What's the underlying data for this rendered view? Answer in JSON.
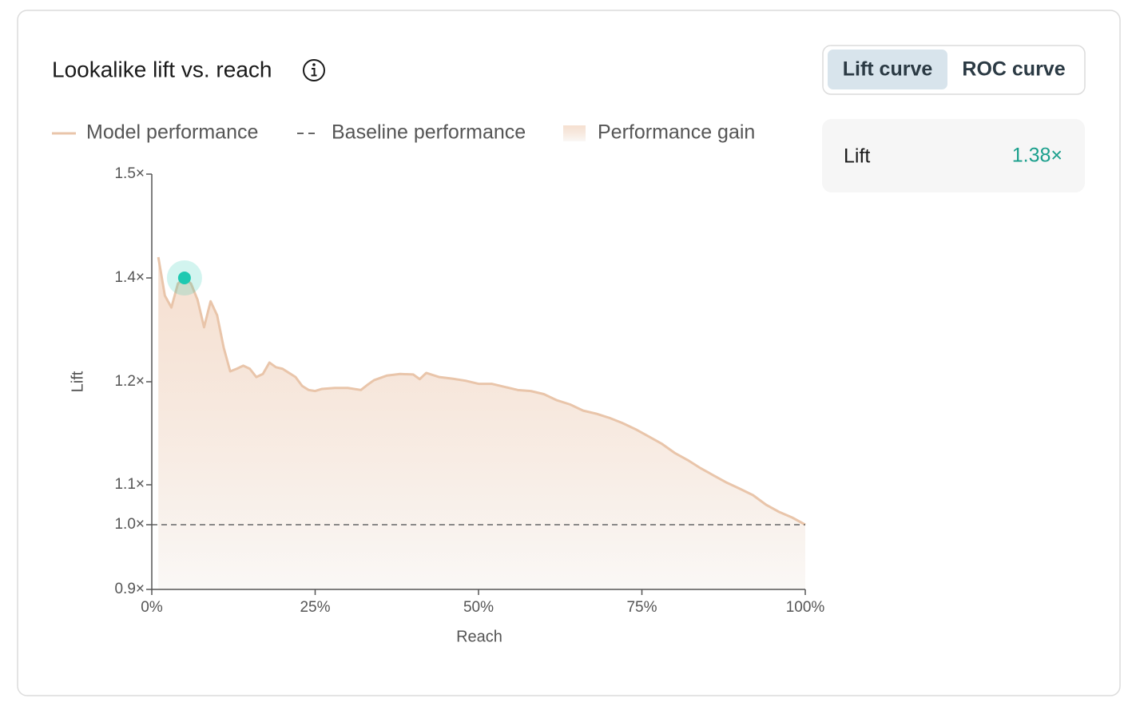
{
  "card": {
    "title": "Lookalike lift vs. reach",
    "tabs": [
      "Lift curve",
      "ROC curve"
    ],
    "stat": {
      "label": "Lift",
      "value": "1.38×"
    }
  },
  "chart_data": {
    "type": "area",
    "xlabel": "Reach",
    "ylabel": "Lift",
    "x": [
      1,
      2,
      3,
      4,
      5,
      6,
      7,
      8,
      9,
      10,
      11,
      12,
      13,
      14,
      15,
      16,
      17,
      18,
      19,
      20,
      21,
      22,
      23,
      24,
      25,
      26,
      28,
      30,
      32,
      33,
      34,
      36,
      38,
      40,
      41,
      42,
      44,
      46,
      48,
      50,
      52,
      54,
      56,
      58,
      60,
      62,
      64,
      66,
      68,
      70,
      72,
      74,
      76,
      78,
      80,
      82,
      84,
      86,
      88,
      90,
      92,
      94,
      96,
      98,
      100
    ],
    "series": [
      {
        "name": "Model performance",
        "color": "#e9c5aa",
        "values": [
          1.42,
          1.366,
          1.343,
          1.389,
          1.4,
          1.389,
          1.358,
          1.305,
          1.355,
          1.328,
          1.266,
          1.22,
          1.225,
          1.231,
          1.225,
          1.209,
          1.215,
          1.237,
          1.228,
          1.225,
          1.217,
          1.209,
          1.196,
          1.192,
          1.191,
          1.193,
          1.194,
          1.194,
          1.192,
          1.197,
          1.203,
          1.212,
          1.215,
          1.214,
          1.205,
          1.217,
          1.209,
          1.206,
          1.202,
          1.198,
          1.198,
          1.195,
          1.192,
          1.191,
          1.188,
          1.182,
          1.178,
          1.172,
          1.169,
          1.165,
          1.16,
          1.154,
          1.147,
          1.14,
          1.131,
          1.124,
          1.116,
          1.109,
          1.102,
          1.09,
          1.074,
          1.05,
          1.032,
          1.018,
          1.0
        ]
      }
    ],
    "baseline": {
      "name": "Baseline performance",
      "value": 1.0,
      "color": "#666666"
    },
    "fill": {
      "name": "Performance gain",
      "color": "#f2d5c1"
    },
    "highlight": {
      "x": 5,
      "y": 1.4,
      "color": "#1ec9b1"
    },
    "xlim": [
      0,
      100
    ],
    "xticks": [
      {
        "value": 0,
        "label": "0%"
      },
      {
        "value": 25,
        "label": "25%"
      },
      {
        "value": 50,
        "label": "50%"
      },
      {
        "value": 75,
        "label": "75%"
      },
      {
        "value": 100,
        "label": "100%"
      }
    ],
    "ylim": [
      0.9,
      1.5
    ],
    "yticks": [
      {
        "value": 0.9,
        "label": "0.9×"
      },
      {
        "value": 1.0,
        "label": "1.0×"
      },
      {
        "value": 1.1,
        "label": "1.1×"
      },
      {
        "value": 1.2,
        "label": "1.2×"
      },
      {
        "value": 1.4,
        "label": "1.4×"
      },
      {
        "value": 1.5,
        "label": "1.5×"
      }
    ]
  }
}
